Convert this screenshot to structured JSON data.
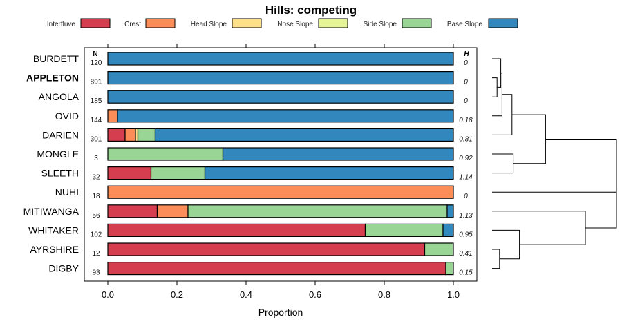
{
  "chart_data": {
    "type": "bar",
    "orientation": "horizontal",
    "stacked": true,
    "title": "Hills: competing",
    "xlabel": "Proportion",
    "ylabel": "",
    "xlim": [
      0,
      1
    ],
    "xticks": [
      0.0,
      0.2,
      0.4,
      0.6,
      0.8,
      1.0
    ],
    "xtick_labels": [
      "0.0",
      "0.2",
      "0.4",
      "0.6",
      "0.8",
      "1.0"
    ],
    "legend_position": "top",
    "n_header": "N",
    "h_header": "H",
    "series": [
      {
        "name": "Interfluve",
        "color": "#D53E4F"
      },
      {
        "name": "Crest",
        "color": "#FC8D59"
      },
      {
        "name": "Head Slope",
        "color": "#FEE08B"
      },
      {
        "name": "Nose Slope",
        "color": "#E6F598"
      },
      {
        "name": "Side Slope",
        "color": "#99D594"
      },
      {
        "name": "Base Slope",
        "color": "#3288BD"
      }
    ],
    "rows": [
      {
        "label": "BURDETT",
        "bold": false,
        "n": "120",
        "h": "0",
        "values": [
          0,
          0,
          0,
          0,
          0,
          1.0
        ]
      },
      {
        "label": "APPLETON",
        "bold": true,
        "n": "891",
        "h": "0",
        "values": [
          0,
          0,
          0,
          0,
          0,
          1.0
        ]
      },
      {
        "label": "ANGOLA",
        "bold": false,
        "n": "185",
        "h": "0",
        "values": [
          0,
          0,
          0,
          0,
          0,
          1.0
        ]
      },
      {
        "label": "OVID",
        "bold": false,
        "n": "144",
        "h": "0.18",
        "values": [
          0,
          0.028,
          0,
          0,
          0,
          0.972
        ]
      },
      {
        "label": "DARIEN",
        "bold": false,
        "n": "301",
        "h": "0.81",
        "values": [
          0.05,
          0.03,
          0.007,
          0,
          0.05,
          0.863
        ]
      },
      {
        "label": "MONGLE",
        "bold": false,
        "n": "3",
        "h": "0.92",
        "values": [
          0,
          0,
          0,
          0,
          0.333,
          0.667
        ]
      },
      {
        "label": "SLEETH",
        "bold": false,
        "n": "32",
        "h": "1.14",
        "values": [
          0.125,
          0,
          0,
          0,
          0.156,
          0.719
        ]
      },
      {
        "label": "NUHI",
        "bold": false,
        "n": "18",
        "h": "0",
        "values": [
          0,
          1.0,
          0,
          0,
          0,
          0
        ]
      },
      {
        "label": "MITIWANGA",
        "bold": false,
        "n": "56",
        "h": "1.13",
        "values": [
          0.143,
          0.089,
          0,
          0,
          0.75,
          0.018
        ]
      },
      {
        "label": "WHITAKER",
        "bold": false,
        "n": "102",
        "h": "0.95",
        "values": [
          0.745,
          0,
          0,
          0,
          0.225,
          0.03
        ]
      },
      {
        "label": "AYRSHIRE",
        "bold": false,
        "n": "12",
        "h": "0.41",
        "values": [
          0.917,
          0,
          0,
          0,
          0.083,
          0
        ]
      },
      {
        "label": "DIGBY",
        "bold": false,
        "n": "93",
        "h": "0.15",
        "values": [
          0.978,
          0,
          0,
          0,
          0.022,
          0
        ]
      }
    ],
    "dendrogram": {
      "merges": [
        {
          "left": "ANGOLA",
          "right": "APPLETON",
          "height": 0.04
        },
        {
          "left": "merge:0",
          "right": "BURDETT",
          "height": 0.07
        },
        {
          "left": "merge:1",
          "right": "OVID",
          "height": 0.08
        },
        {
          "left": "merge:2",
          "right": "DARIEN",
          "height": 0.16
        },
        {
          "left": "MONGLE",
          "right": "SLEETH",
          "height": 0.17
        },
        {
          "left": "merge:3",
          "right": "merge:4",
          "height": 0.43
        },
        {
          "left": "AYRSHIRE",
          "right": "DIGBY",
          "height": 0.06
        },
        {
          "left": "merge:6",
          "right": "WHITAKER",
          "height": 0.22
        },
        {
          "left": "merge:7",
          "right": "MITIWANGA",
          "height": 0.75
        },
        {
          "left": "merge:8",
          "right": "NUHI",
          "height": 1.0
        },
        {
          "left": "merge:5",
          "right": "merge:9",
          "height": 1.0
        }
      ]
    }
  }
}
